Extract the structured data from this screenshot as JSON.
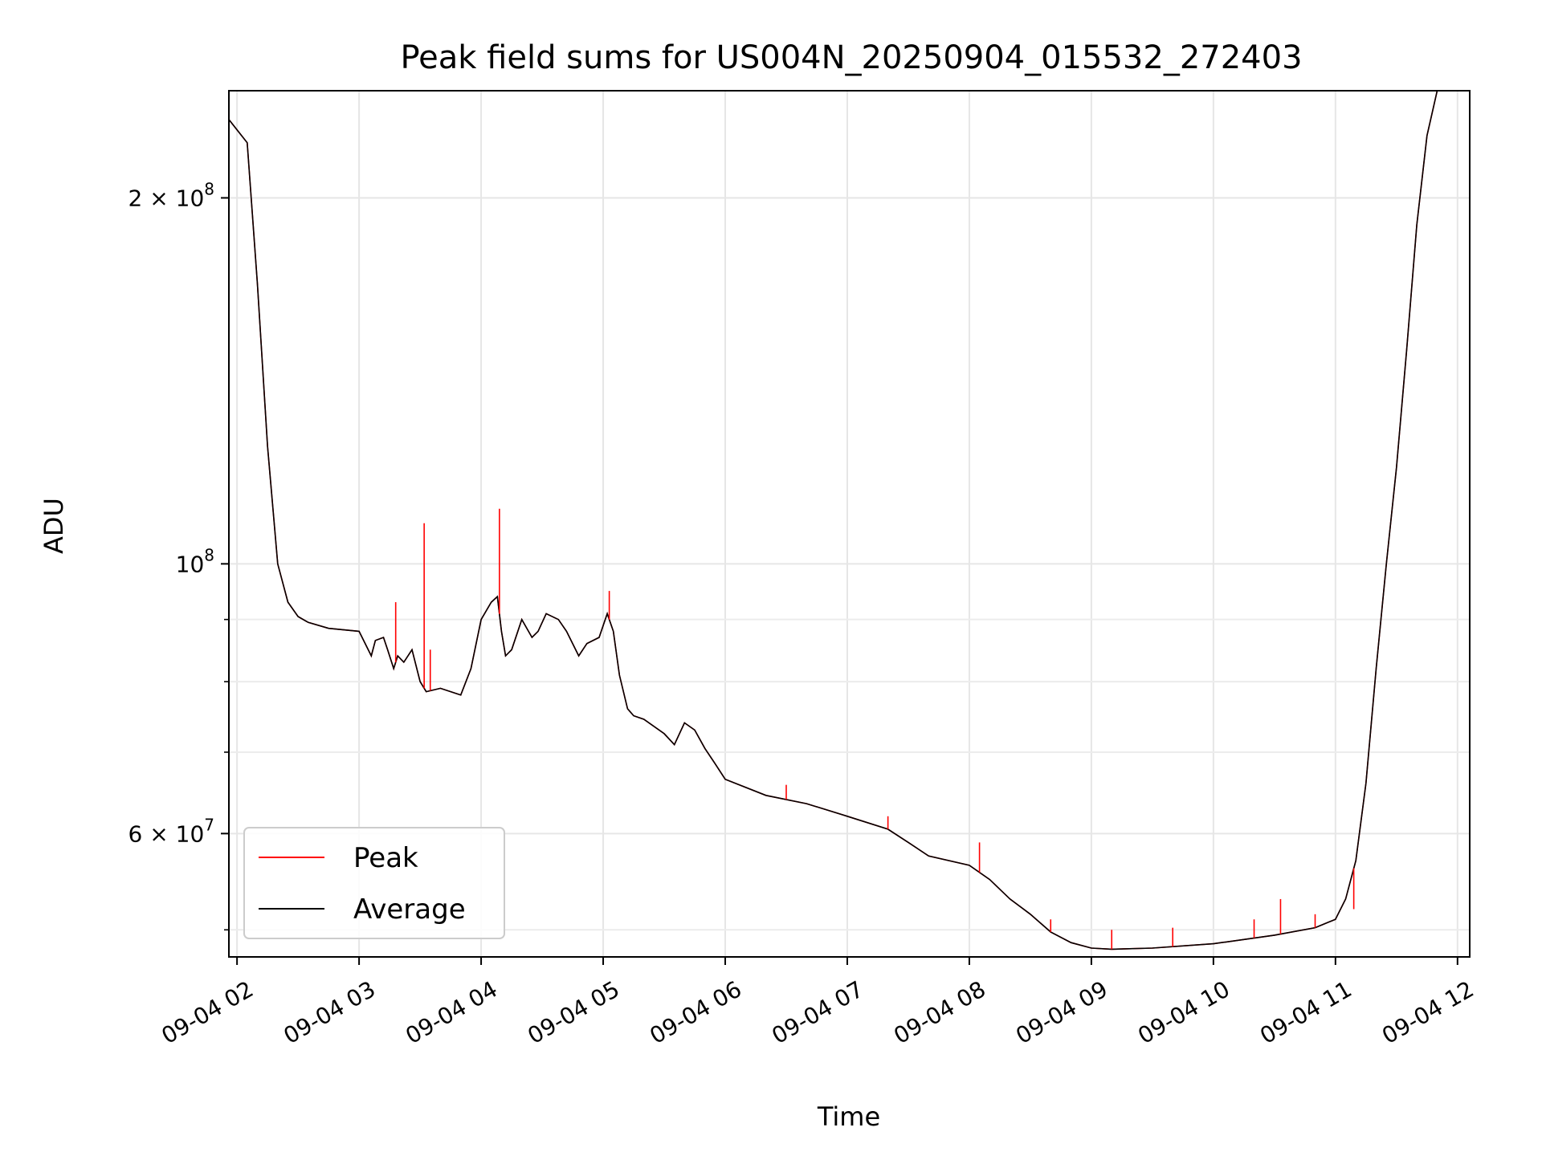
{
  "chart_data": {
    "type": "line",
    "title": "Peak field sums for US004N_20250904_015532_272403",
    "xlabel": "Time",
    "ylabel": "ADU",
    "yscale": "log",
    "xlim": [
      "2025-09-04T01:56",
      "2025-09-04T12:06"
    ],
    "ylim": [
      47500000,
      245000000
    ],
    "x_ticks": [
      {
        "t": "2025-09-04T02:00",
        "label": "09-04 02"
      },
      {
        "t": "2025-09-04T03:00",
        "label": "09-04 03"
      },
      {
        "t": "2025-09-04T04:00",
        "label": "09-04 04"
      },
      {
        "t": "2025-09-04T05:00",
        "label": "09-04 05"
      },
      {
        "t": "2025-09-04T06:00",
        "label": "09-04 06"
      },
      {
        "t": "2025-09-04T07:00",
        "label": "09-04 07"
      },
      {
        "t": "2025-09-04T08:00",
        "label": "09-04 08"
      },
      {
        "t": "2025-09-04T09:00",
        "label": "09-04 09"
      },
      {
        "t": "2025-09-04T10:00",
        "label": "09-04 10"
      },
      {
        "t": "2025-09-04T11:00",
        "label": "09-04 11"
      },
      {
        "t": "2025-09-04T12:00",
        "label": "09-04 12"
      }
    ],
    "y_major_ticks": [
      {
        "value": 60000000,
        "base": "6",
        "exp": "7"
      },
      {
        "value": 100000000,
        "base": "",
        "exp": "8"
      },
      {
        "value": 200000000,
        "base": "2",
        "exp": "8"
      }
    ],
    "y_minor_ticks": [
      50000000,
      70000000,
      80000000,
      90000000
    ],
    "grid": true,
    "legend_position": "lower-left",
    "series": [
      {
        "name": "Peak",
        "color": "#ff0000",
        "x": [
          "2025-09-04T03:18",
          "2025-09-04T03:32",
          "2025-09-04T03:35",
          "2025-09-04T04:09",
          "2025-09-04T05:03",
          "2025-09-04T06:30",
          "2025-09-04T07:20",
          "2025-09-04T08:05",
          "2025-09-04T08:40",
          "2025-09-04T09:10",
          "2025-09-04T09:40",
          "2025-09-04T10:20",
          "2025-09-04T10:33",
          "2025-09-04T10:50",
          "2025-09-04T11:09"
        ],
        "values": [
          93000000,
          108000000,
          85000000,
          111000000,
          95000000,
          65800000,
          62000000,
          59000000,
          51000000,
          50000000,
          50200000,
          51000000,
          53000000,
          51500000,
          52000000
        ]
      },
      {
        "name": "Average",
        "color": "#000000",
        "x": [
          "2025-09-04T01:56",
          "2025-09-04T02:05",
          "2025-09-04T02:10",
          "2025-09-04T02:15",
          "2025-09-04T02:20",
          "2025-09-04T02:25",
          "2025-09-04T02:30",
          "2025-09-04T02:35",
          "2025-09-04T02:45",
          "2025-09-04T03:00",
          "2025-09-04T03:06",
          "2025-09-04T03:08",
          "2025-09-04T03:12",
          "2025-09-04T03:14",
          "2025-09-04T03:17",
          "2025-09-04T03:19",
          "2025-09-04T03:22",
          "2025-09-04T03:26",
          "2025-09-04T03:30",
          "2025-09-04T03:33",
          "2025-09-04T03:40",
          "2025-09-04T03:50",
          "2025-09-04T03:55",
          "2025-09-04T04:00",
          "2025-09-04T04:05",
          "2025-09-04T04:08",
          "2025-09-04T04:10",
          "2025-09-04T04:12",
          "2025-09-04T04:15",
          "2025-09-04T04:20",
          "2025-09-04T04:25",
          "2025-09-04T04:28",
          "2025-09-04T04:32",
          "2025-09-04T04:38",
          "2025-09-04T04:42",
          "2025-09-04T04:48",
          "2025-09-04T04:52",
          "2025-09-04T04:58",
          "2025-09-04T05:02",
          "2025-09-04T05:05",
          "2025-09-04T05:08",
          "2025-09-04T05:12",
          "2025-09-04T05:15",
          "2025-09-04T05:20",
          "2025-09-04T05:30",
          "2025-09-04T05:35",
          "2025-09-04T05:40",
          "2025-09-04T05:45",
          "2025-09-04T05:50",
          "2025-09-04T05:55",
          "2025-09-04T06:00",
          "2025-09-04T06:20",
          "2025-09-04T06:40",
          "2025-09-04T07:00",
          "2025-09-04T07:20",
          "2025-09-04T07:30",
          "2025-09-04T07:40",
          "2025-09-04T08:00",
          "2025-09-04T08:10",
          "2025-09-04T08:20",
          "2025-09-04T08:30",
          "2025-09-04T08:40",
          "2025-09-04T08:50",
          "2025-09-04T09:00",
          "2025-09-04T09:10",
          "2025-09-04T09:30",
          "2025-09-04T10:00",
          "2025-09-04T10:30",
          "2025-09-04T10:50",
          "2025-09-04T11:00",
          "2025-09-04T11:05",
          "2025-09-04T11:10",
          "2025-09-04T11:15",
          "2025-09-04T11:20",
          "2025-09-04T11:25",
          "2025-09-04T11:30",
          "2025-09-04T11:35",
          "2025-09-04T11:40",
          "2025-09-04T11:45",
          "2025-09-04T11:50",
          "2025-09-04T11:55"
        ],
        "values": [
          232000000,
          222000000,
          170000000,
          125000000,
          100000000,
          93000000,
          90500000,
          89500000,
          88500000,
          88000000,
          84000000,
          86500000,
          87000000,
          85000000,
          82000000,
          84000000,
          83000000,
          85000000,
          80000000,
          78500000,
          79000000,
          78000000,
          82000000,
          90000000,
          93000000,
          94000000,
          88000000,
          84000000,
          85000000,
          90000000,
          87000000,
          88000000,
          91000000,
          90000000,
          88000000,
          84000000,
          86000000,
          87000000,
          91000000,
          88000000,
          81000000,
          76000000,
          75000000,
          74500000,
          72500000,
          71000000,
          74000000,
          73000000,
          70500000,
          68500000,
          66500000,
          64500000,
          63500000,
          62000000,
          60500000,
          59000000,
          57500000,
          56500000,
          55000000,
          53000000,
          51500000,
          49800000,
          48800000,
          48300000,
          48200000,
          48300000,
          48700000,
          49500000,
          50200000,
          51000000,
          53000000,
          57000000,
          66000000,
          82000000,
          100000000,
          120000000,
          150000000,
          190000000,
          225000000,
          245000000,
          245000000
        ]
      }
    ]
  }
}
